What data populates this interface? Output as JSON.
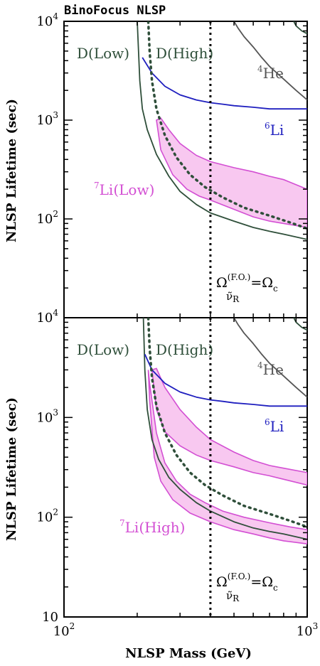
{
  "title": "BinoFocus NLSP",
  "colors": {
    "frame": "#000000",
    "deuterium": "#2f4f3a",
    "helium": "#555555",
    "lithium6": "#1f1fbf",
    "lithium7_line": "#d34fd3",
    "lithium7_fill": "#f8c8f0",
    "dotted": "#000000",
    "fo_dotted": "#2f4f3a"
  },
  "chart_data": [
    {
      "type": "line",
      "panel": "top",
      "title": "BinoFocus NLSP",
      "xlabel": "NLSP Mass (GeV)",
      "ylabel": "NLSP Lifetime (sec)",
      "xscale": "log",
      "yscale": "log",
      "xlim": [
        100,
        1000
      ],
      "ylim": [
        10,
        10000
      ],
      "x_ticks": [
        {
          "value": 100,
          "base": "10",
          "exp": "2"
        },
        {
          "value": 1000,
          "base": "10",
          "exp": "3"
        }
      ],
      "y_ticks": [
        {
          "value": 10000,
          "base": "10",
          "exp": "4"
        },
        {
          "value": 1000,
          "base": "10",
          "exp": "3"
        },
        {
          "value": 100,
          "base": "10",
          "exp": "2"
        }
      ],
      "labels": {
        "d_low": "D(Low)",
        "d_high": "D(High)",
        "he4_sup": "4",
        "he4_main": "He",
        "li6_sup": "6",
        "li6_main": "Li",
        "li7_sup": "7",
        "li7_main": "Li(Low)",
        "omega_left": "Ω",
        "omega_sup": "(F.O.)",
        "omega_sub": "ν̃",
        "omega_subsub": "R",
        "omega_right": "=Ω",
        "omega_right_sub": "c"
      },
      "vertical_line_x": 400,
      "series": [
        {
          "key": "d_low",
          "style": "solid",
          "color": "deuterium",
          "x": [
            200,
            205,
            210,
            220,
            240,
            270,
            300,
            350,
            400,
            500,
            600,
            700,
            800,
            1000
          ],
          "y": [
            10000,
            2500,
            1300,
            800,
            450,
            270,
            190,
            140,
            115,
            95,
            82,
            75,
            70,
            62
          ]
        },
        {
          "key": "he4",
          "style": "solid",
          "color": "helium",
          "x": [
            500,
            520,
            550,
            600,
            650,
            700,
            800,
            900,
            1000
          ],
          "y": [
            10000,
            8500,
            7000,
            5500,
            4300,
            3500,
            2600,
            2000,
            1600
          ]
        },
        {
          "key": "he4_corner",
          "style": "solid",
          "color": "deuterium",
          "x": [
            880,
            900,
            950,
            1000
          ],
          "y": [
            10000,
            9000,
            8000,
            7500
          ]
        },
        {
          "key": "li6",
          "style": "solid",
          "color": "lithium6",
          "x": [
            210,
            230,
            260,
            300,
            350,
            400,
            450,
            500,
            600,
            700,
            800,
            1000
          ],
          "y": [
            4300,
            3000,
            2200,
            1800,
            1600,
            1500,
            1450,
            1400,
            1350,
            1300,
            1300,
            1300
          ]
        },
        {
          "key": "d_high_fo",
          "style": "dotted",
          "color": "fo_dotted",
          "x": [
            222,
            225,
            230,
            240,
            260,
            290,
            330,
            380,
            450,
            550,
            700,
            850,
            1000
          ],
          "y": [
            10000,
            5000,
            2500,
            1300,
            700,
            420,
            280,
            210,
            165,
            130,
            108,
            92,
            80
          ]
        },
        {
          "key": "li7_band",
          "style": "band",
          "color": "lithium7_fill",
          "upper_x": [
            240,
            250,
            270,
            300,
            350,
            400,
            500,
            600,
            700,
            800,
            1000
          ],
          "upper_y": [
            1000,
            1050,
            800,
            580,
            440,
            380,
            330,
            300,
            270,
            250,
            200
          ],
          "lower_x": [
            240,
            250,
            280,
            320,
            360,
            400,
            500,
            600,
            700,
            800,
            1000
          ],
          "lower_y": [
            1000,
            500,
            280,
            200,
            170,
            155,
            125,
            105,
            95,
            90,
            82
          ]
        }
      ]
    },
    {
      "type": "line",
      "panel": "bottom",
      "xlabel": "NLSP Mass (GeV)",
      "ylabel": "NLSP Lifetime (sec)",
      "xscale": "log",
      "yscale": "log",
      "xlim": [
        100,
        1000
      ],
      "ylim": [
        10,
        10000
      ],
      "x_ticks": [
        {
          "value": 100,
          "base": "10",
          "exp": "2"
        },
        {
          "value": 1000,
          "base": "10",
          "exp": "3"
        }
      ],
      "y_ticks": [
        {
          "value": 10000,
          "base": "10",
          "exp": "4"
        },
        {
          "value": 1000,
          "base": "10",
          "exp": "3"
        },
        {
          "value": 100,
          "base": "10",
          "exp": "2"
        },
        {
          "value": 10,
          "base": "10",
          "exp": ""
        }
      ],
      "labels": {
        "d_low": "D(Low)",
        "d_high": "D(High)",
        "he4_sup": "4",
        "he4_main": "He",
        "li6_sup": "6",
        "li6_main": "Li",
        "li7_sup": "7",
        "li7_main": "Li(High)",
        "omega_left": "Ω",
        "omega_sup": "(F.O.)",
        "omega_sub": "ν̃",
        "omega_subsub": "R",
        "omega_right": "=Ω",
        "omega_right_sub": "c"
      },
      "vertical_line_x": 400,
      "series": [
        {
          "key": "d_low",
          "style": "solid",
          "color": "deuterium",
          "x": [
            212,
            215,
            220,
            230,
            245,
            270,
            300,
            350,
            400,
            500,
            600,
            700,
            800,
            1000
          ],
          "y": [
            10000,
            3000,
            1200,
            600,
            380,
            250,
            190,
            140,
            115,
            90,
            78,
            72,
            68,
            60
          ]
        },
        {
          "key": "he4",
          "style": "solid",
          "color": "helium",
          "x": [
            500,
            520,
            550,
            600,
            650,
            700,
            800,
            900,
            1000
          ],
          "y": [
            10000,
            8500,
            7000,
            5500,
            4300,
            3500,
            2600,
            2000,
            1600
          ]
        },
        {
          "key": "he4_corner",
          "style": "solid",
          "color": "deuterium",
          "x": [
            880,
            900,
            950,
            1000
          ],
          "y": [
            10000,
            9000,
            8000,
            7500
          ]
        },
        {
          "key": "li6",
          "style": "solid",
          "color": "lithium6",
          "x": [
            215,
            230,
            260,
            300,
            350,
            400,
            450,
            500,
            600,
            700,
            800,
            1000
          ],
          "y": [
            4300,
            3000,
            2200,
            1800,
            1600,
            1500,
            1450,
            1400,
            1350,
            1300,
            1300,
            1300
          ]
        },
        {
          "key": "d_high_fo",
          "style": "dotted",
          "color": "fo_dotted",
          "x": [
            222,
            225,
            230,
            240,
            260,
            290,
            330,
            380,
            450,
            550,
            700,
            850,
            1000
          ],
          "y": [
            10000,
            5000,
            2500,
            1300,
            700,
            420,
            280,
            210,
            165,
            130,
            108,
            92,
            80
          ]
        },
        {
          "key": "li7_band_upper",
          "style": "band",
          "color": "lithium7_fill",
          "upper_x": [
            230,
            240,
            260,
            300,
            350,
            400,
            500,
            600,
            700,
            800,
            1000
          ],
          "upper_y": [
            3000,
            3100,
            2000,
            1200,
            800,
            600,
            450,
            370,
            330,
            310,
            280
          ],
          "lower_x": [
            230,
            240,
            260,
            300,
            350,
            400,
            500,
            600,
            700,
            800,
            1000
          ],
          "lower_y": [
            3000,
            1200,
            720,
            520,
            420,
            370,
            320,
            280,
            260,
            240,
            210
          ]
        },
        {
          "key": "li7_band_lower",
          "style": "band",
          "color": "lithium7_fill",
          "upper_x": [
            222,
            225,
            240,
            260,
            290,
            330,
            380,
            450,
            550,
            700,
            850,
            1000
          ],
          "upper_y": [
            3000,
            2200,
            700,
            350,
            230,
            170,
            140,
            115,
            100,
            88,
            80,
            75
          ],
          "lower_x": [
            222,
            225,
            235,
            250,
            280,
            330,
            400,
            500,
            600,
            700,
            800,
            1000
          ],
          "lower_y": [
            3000,
            1500,
            400,
            230,
            150,
            110,
            90,
            75,
            68,
            62,
            58,
            54
          ]
        }
      ]
    }
  ]
}
